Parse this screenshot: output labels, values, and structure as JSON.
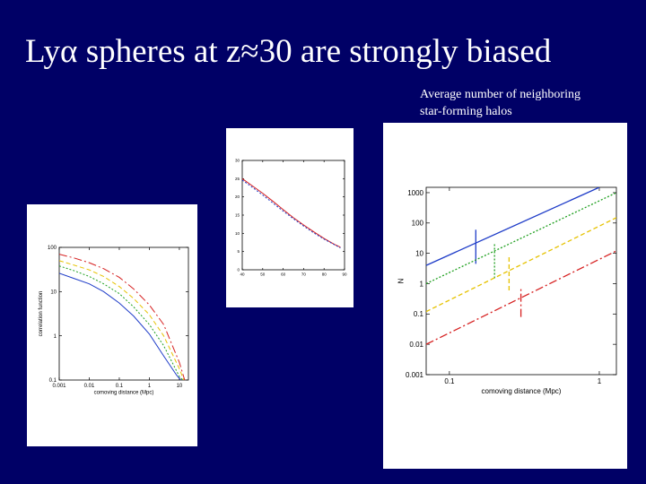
{
  "slide": {
    "title": "Lyα spheres at z≈30 are strongly biased",
    "caption_line1": "Average number of neighboring",
    "caption_line2": "star-forming halos",
    "background": "#000066"
  },
  "chart_data": [
    {
      "id": "correlation",
      "type": "line",
      "xlabel": "comoving distance (Mpc)",
      "ylabel": "correlation function",
      "xscale": "log",
      "yscale": "log",
      "xlim": [
        0.001,
        20
      ],
      "ylim": [
        0.1,
        100
      ],
      "x_ticks": [
        "0.001",
        "0.01",
        "0.1",
        "1",
        "10"
      ],
      "y_ticks": [
        "0.1",
        "1",
        "10",
        "100"
      ],
      "series": [
        {
          "color": "#d62020",
          "dash": "9,3,2,3",
          "x": [
            0.001,
            0.003,
            0.01,
            0.03,
            0.1,
            0.3,
            1,
            3,
            10,
            15
          ],
          "y": [
            70,
            58,
            45,
            33,
            21,
            11.5,
            5,
            1.8,
            0.25,
            0.1
          ]
        },
        {
          "color": "#e6c200",
          "dash": "5,3",
          "x": [
            0.001,
            0.003,
            0.01,
            0.03,
            0.1,
            0.3,
            1,
            3,
            10,
            14
          ],
          "y": [
            50,
            40,
            31,
            22,
            13,
            7,
            3,
            1,
            0.18,
            0.1
          ]
        },
        {
          "color": "#20a020",
          "dash": "2,2",
          "x": [
            0.001,
            0.003,
            0.01,
            0.03,
            0.1,
            0.3,
            1,
            3,
            10,
            13
          ],
          "y": [
            38,
            30,
            22,
            15,
            9,
            4.5,
            1.8,
            0.6,
            0.12,
            0.1
          ]
        },
        {
          "color": "#1e3cc8",
          "dash": "",
          "x": [
            0.001,
            0.003,
            0.01,
            0.03,
            0.1,
            0.3,
            1,
            3,
            8,
            11
          ],
          "y": [
            26,
            20,
            15,
            10,
            5.5,
            2.8,
            1.1,
            0.35,
            0.13,
            0.1
          ]
        }
      ]
    },
    {
      "id": "bias",
      "type": "line",
      "xlabel": "",
      "ylabel": "",
      "xlim": [
        40,
        90
      ],
      "ylim": [
        0,
        30
      ],
      "x_ticks": [
        "40",
        "50",
        "60",
        "70",
        "80",
        "90"
      ],
      "y_ticks": [
        "0",
        "5",
        "10",
        "15",
        "20",
        "25",
        "30"
      ],
      "series": [
        {
          "color": "#d62020",
          "dash": "",
          "x": [
            40,
            45,
            50,
            55,
            60,
            65,
            70,
            75,
            80,
            85,
            88
          ],
          "y": [
            25,
            23,
            21,
            18.8,
            16.5,
            14.3,
            12.3,
            10.4,
            8.6,
            7.0,
            6.2
          ]
        },
        {
          "color": "#1e3cc8",
          "dash": "2,2",
          "x": [
            40,
            45,
            50,
            55,
            60,
            65,
            70,
            75,
            80,
            85,
            88
          ],
          "y": [
            24.6,
            22.6,
            20.5,
            18.3,
            16.1,
            14.0,
            12.0,
            10.1,
            8.4,
            6.9,
            6.0
          ]
        }
      ]
    },
    {
      "id": "neighbors",
      "type": "line",
      "xlabel": "comoving distance (Mpc)",
      "ylabel": "N",
      "xscale": "log",
      "yscale": "log",
      "xlim": [
        0.07,
        1.3
      ],
      "ylim": [
        0.001,
        1500
      ],
      "x_ticks": [
        "0.1",
        "1"
      ],
      "y_ticks": [
        "0.001",
        "0.01",
        "0.1",
        "1",
        "10",
        "100",
        "1000"
      ],
      "series": [
        {
          "color": "#1e3cc8",
          "dash": "",
          "x": [
            0.07,
            1.0
          ],
          "y": [
            4,
            1500
          ],
          "marker_x": 0.15,
          "marker_y": [
            4.5,
            60
          ]
        },
        {
          "color": "#20a020",
          "dash": "2,2",
          "x": [
            0.07,
            1.3
          ],
          "y": [
            1,
            1000
          ],
          "marker_x": 0.2,
          "marker_y": [
            1.5,
            20
          ]
        },
        {
          "color": "#e6c200",
          "dash": "5,3",
          "x": [
            0.07,
            1.3
          ],
          "y": [
            0.12,
            150
          ],
          "marker_x": 0.25,
          "marker_y": [
            0.6,
            8
          ]
        },
        {
          "color": "#d62020",
          "dash": "9,3,2,3",
          "x": [
            0.07,
            1.3
          ],
          "y": [
            0.01,
            12
          ],
          "marker_x": 0.3,
          "marker_y": [
            0.08,
            0.8
          ]
        }
      ]
    }
  ]
}
